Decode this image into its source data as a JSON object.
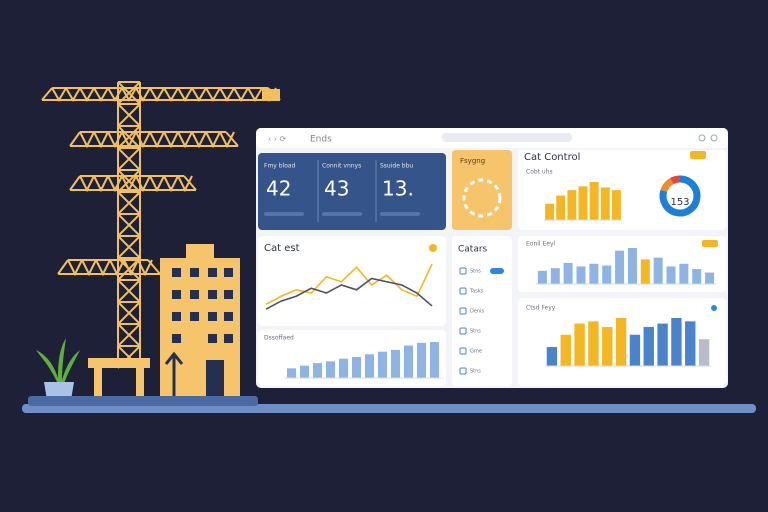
{
  "window": {
    "title": "Ends"
  },
  "stats": [
    {
      "label": "Fmy bload",
      "value": "42"
    },
    {
      "label": "Connit vnnys",
      "value": "43"
    },
    {
      "label": "Ssuide bbu",
      "value": "13."
    }
  ],
  "promo": {
    "title": "Fsygng"
  },
  "control": {
    "title": "Cat Control",
    "subtitle": "Cobt uhs",
    "values": [
      30,
      45,
      55,
      62,
      70,
      60,
      55
    ],
    "color": "#f5b623",
    "donut": {
      "label": "153",
      "segments": [
        80,
        12,
        8
      ],
      "colors": [
        "#1f7fd6",
        "#f08a2a",
        "#e0473a"
      ]
    }
  },
  "line_chart": {
    "title": "Cat est",
    "series": [
      {
        "color": "#f5b623",
        "values": [
          12,
          22,
          30,
          26,
          46,
          40,
          58,
          36,
          48,
          30,
          22,
          62
        ]
      },
      {
        "color": "#4a5266",
        "values": [
          6,
          16,
          22,
          32,
          26,
          36,
          30,
          44,
          40,
          36,
          26,
          10
        ]
      }
    ]
  },
  "bottom_chart": {
    "title": "Dssoffaed",
    "values": [
      22,
      28,
      34,
      38,
      44,
      48,
      54,
      60,
      64,
      74,
      80,
      82
    ],
    "color": "#8fb4e3"
  },
  "list": {
    "title": "Catars",
    "items": [
      "Stns",
      "Tasks",
      "Denis",
      "Stns",
      "Grne",
      "Stns"
    ]
  },
  "mid_chart": {
    "title": "Eonil Eeyl",
    "values": [
      30,
      36,
      48,
      40,
      46,
      42,
      76,
      82,
      56,
      60,
      40,
      46,
      34,
      26
    ],
    "colors": [
      "#8fb4e3",
      "#8fb4e3",
      "#8fb4e3",
      "#8fb4e3",
      "#8fb4e3",
      "#8fb4e3",
      "#8fb4e3",
      "#8fb4e3",
      "#f5b623",
      "#8fb4e3",
      "#8fb4e3",
      "#8fb4e3",
      "#8fb4e3",
      "#8fb4e3"
    ]
  },
  "right_chart": {
    "title": "Ctsd Feyy",
    "values": [
      34,
      56,
      76,
      80,
      70,
      86,
      56,
      70,
      76,
      86,
      80,
      48
    ],
    "colors": [
      "#4a83c9",
      "#f5b623",
      "#f5b623",
      "#f5b623",
      "#f5b623",
      "#f5b623",
      "#4a83c9",
      "#4a83c9",
      "#4a83c9",
      "#4a83c9",
      "#4a83c9",
      "#b7bcc8"
    ]
  }
}
